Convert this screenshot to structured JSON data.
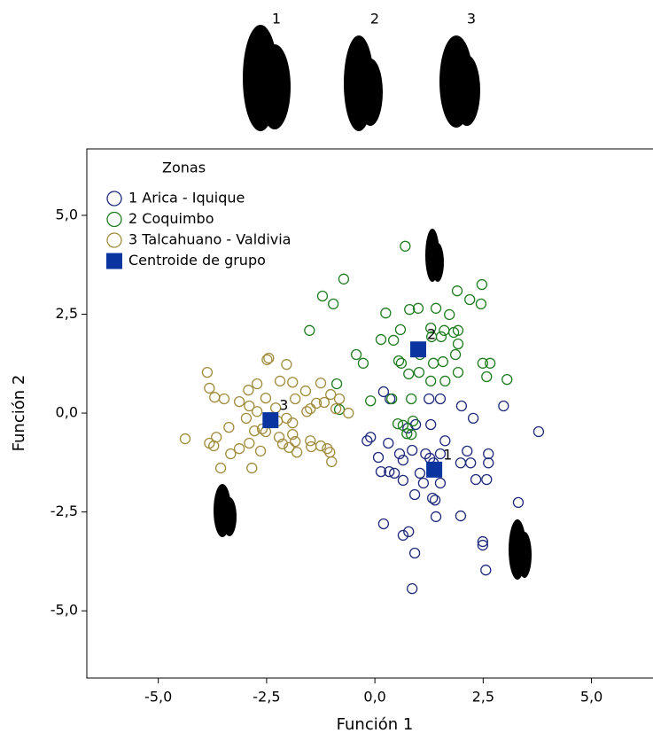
{
  "chart_data": {
    "type": "scatter",
    "x_label": "Función 1",
    "y_label": "Función 2",
    "legend_title": "Zonas",
    "legend": "upper left",
    "image_labels": [
      "1",
      "2",
      "3"
    ],
    "xlim": [
      -6.65,
      6.42
    ],
    "ylim": [
      -6.7,
      6.68
    ],
    "xticks": [
      {
        "value": -5,
        "label": "-5,0"
      },
      {
        "value": -2.5,
        "label": "-2,5"
      },
      {
        "value": 0,
        "label": "0,0"
      },
      {
        "value": 2.5,
        "label": "2,5"
      },
      {
        "value": 5,
        "label": "5,0"
      }
    ],
    "yticks": [
      {
        "value": -5,
        "label": "-5,0"
      },
      {
        "value": -2.5,
        "label": "-2,5"
      },
      {
        "value": 0,
        "label": "0,0"
      },
      {
        "value": 2.5,
        "label": "2,5"
      },
      {
        "value": 5,
        "label": "5,0"
      }
    ],
    "series": [
      {
        "name": "1  Arica - Iquique",
        "color": "#1f2a7c",
        "marker": "open-circle",
        "x": [
          0.2,
          0.35,
          1.25,
          1.51,
          2.0,
          2.27,
          2.97,
          3.78,
          -0.18,
          -0.1,
          0.76,
          0.94,
          1.29,
          1.62,
          0.31,
          0.08,
          0.57,
          0.65,
          0.86,
          1.17,
          1.27,
          1.51,
          2.13,
          2.62,
          2.62,
          2.21,
          1.98,
          0.14,
          0.33,
          0.45,
          0.65,
          1.04,
          1.35,
          1.12,
          1.51,
          2.33,
          2.58,
          0.92,
          1.33,
          1.39,
          3.31,
          0.2,
          0.65,
          0.78,
          1.41,
          1.98,
          2.49,
          2.49,
          0.92,
          2.56,
          0.86
        ],
        "values": [
          0.54,
          0.36,
          0.36,
          0.36,
          0.18,
          -0.13,
          0.18,
          -0.47,
          -0.7,
          -0.61,
          -0.38,
          -0.29,
          -0.29,
          -0.7,
          -0.76,
          -1.12,
          -1.03,
          -1.19,
          -0.94,
          -1.03,
          -1.14,
          -1.03,
          -0.96,
          -1.03,
          -1.26,
          -1.26,
          -1.26,
          -1.48,
          -1.48,
          -1.52,
          -1.7,
          -1.52,
          -1.26,
          -1.77,
          -1.77,
          -1.68,
          -1.68,
          -2.06,
          -2.15,
          -2.2,
          -2.26,
          -2.8,
          -3.09,
          -3.0,
          -2.62,
          -2.6,
          -3.25,
          -3.34,
          -3.54,
          -3.97,
          -4.44
        ]
      },
      {
        "name": "2  Coquimbo",
        "color": "#1e7d1e",
        "marker": "open-circle",
        "x": [
          0.7,
          -0.72,
          -1.21,
          -0.96,
          0.25,
          0.8,
          1.0,
          1.41,
          2.19,
          2.47,
          2.45,
          1.9,
          1.72,
          1.29,
          1.6,
          1.82,
          -1.51,
          0.14,
          0.43,
          0.59,
          1.31,
          1.53,
          1.92,
          1.92,
          -0.43,
          -0.27,
          0.55,
          1.04,
          1.35,
          1.57,
          1.86,
          2.49,
          2.66,
          1.02,
          1.29,
          1.62,
          1.92,
          2.58,
          3.05,
          0.78,
          0.61,
          -0.88,
          -0.1,
          0.39,
          0.84,
          0.88,
          0.65,
          0.74,
          0.84,
          0.53,
          -0.82
        ],
        "values": [
          4.22,
          3.39,
          2.96,
          2.76,
          2.53,
          2.62,
          2.65,
          2.65,
          2.87,
          3.25,
          2.76,
          3.09,
          2.49,
          2.15,
          2.09,
          2.04,
          2.09,
          1.86,
          1.84,
          2.11,
          1.93,
          1.93,
          1.75,
          2.09,
          1.48,
          1.26,
          1.32,
          1.48,
          1.26,
          1.3,
          1.48,
          1.26,
          1.26,
          1.03,
          0.81,
          0.81,
          1.03,
          0.92,
          0.85,
          0.99,
          1.26,
          0.74,
          0.31,
          0.36,
          0.36,
          -0.2,
          -0.31,
          -0.52,
          -0.54,
          -0.27,
          0.09
        ]
      },
      {
        "name": "3  Talcahuano - Valdivia",
        "color": "#a08c3c",
        "marker": "open-circle",
        "x": [
          -3.87,
          -3.82,
          -3.48,
          -3.7,
          -3.13,
          -2.92,
          -2.49,
          -2.45,
          -2.04,
          -2.72,
          -2.52,
          -2.19,
          -1.9,
          -1.84,
          -1.6,
          -1.25,
          -1.02,
          -0.82,
          -0.61,
          -1.17,
          -1.57,
          -1.49,
          -1.35,
          -2.04,
          -2.25,
          -2.29,
          -2.9,
          -2.97,
          -2.72,
          -2.6,
          -2.78,
          -2.52,
          -2.21,
          -2.13,
          -1.98,
          -1.84,
          -1.8,
          -1.49,
          -1.47,
          -1.25,
          -1.1,
          -1.04,
          -1.0,
          -1.9,
          -1.9,
          -2.9,
          -3.13,
          -2.64,
          -2.84,
          -3.37,
          -3.66,
          -3.72,
          -3.82,
          -4.38,
          -3.56,
          -3.33,
          -0.9
        ],
        "values": [
          1.03,
          0.63,
          0.36,
          0.4,
          0.29,
          0.58,
          1.35,
          1.39,
          1.23,
          0.74,
          0.38,
          0.81,
          0.78,
          0.36,
          0.56,
          0.76,
          0.47,
          0.36,
          0.0,
          0.27,
          0.04,
          0.11,
          0.25,
          -0.13,
          -0.2,
          0.13,
          0.18,
          -0.13,
          0.04,
          -0.4,
          -0.45,
          -0.47,
          -0.61,
          -0.78,
          -0.87,
          -0.72,
          -0.99,
          -0.7,
          -0.85,
          -0.83,
          -0.9,
          -0.99,
          -1.23,
          -0.25,
          -0.54,
          -0.76,
          -0.9,
          -0.96,
          -1.39,
          -0.36,
          -0.61,
          -0.83,
          -0.76,
          -0.65,
          -1.39,
          -1.03,
          0.11
        ]
      },
      {
        "name": "Centroide de grupo",
        "color": "#0a34a0",
        "marker": "filled-square",
        "x": [
          1.37,
          1.0,
          -2.41
        ],
        "values": [
          -1.43,
          1.61,
          -0.18
        ],
        "labels": [
          "1",
          "2",
          "3"
        ]
      }
    ]
  }
}
